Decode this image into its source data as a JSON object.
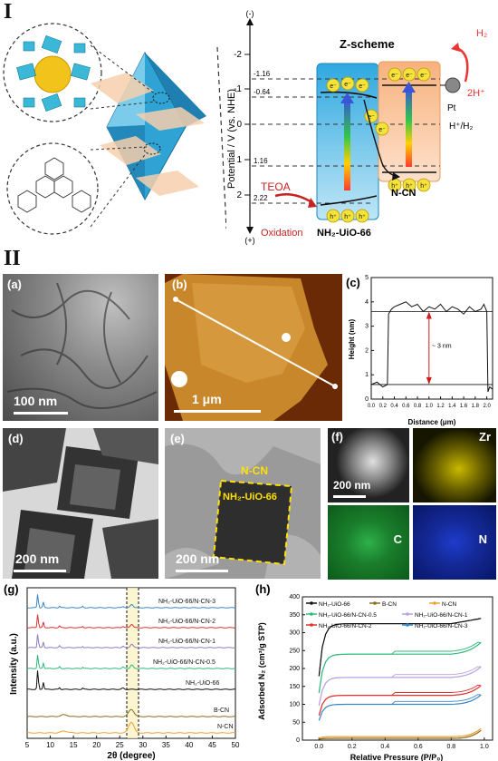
{
  "section_labels": {
    "s1": "I",
    "s2": "II"
  },
  "scheme": {
    "title": "Z-scheme",
    "yaxis_top": "(-)",
    "yaxis_bottom": "(+)",
    "yaxis_label": "Potential / V (vs. NHE)",
    "ticks": [
      "-2",
      "-1",
      "0",
      "1",
      "2"
    ],
    "levels": {
      "cb_uio": "-0.64",
      "cb_cn": "-1.16",
      "vb_cn": "1.16",
      "vb_uio": "2.22"
    },
    "electron": "e⁻",
    "hole": "h⁺",
    "h2": "H₂",
    "h_plus": "2H⁺",
    "pt": "Pt",
    "redox_line": "H⁺/H₂",
    "teoa": "TEOA",
    "oxidation": "Oxidation",
    "uio_label": "NH₂-UiO-66",
    "cn_label": "N-CN"
  },
  "panels": {
    "a": {
      "label": "(a)",
      "scale": "100 nm"
    },
    "b": {
      "label": "(b)",
      "scale": "1 μm"
    },
    "c": {
      "label": "(c)",
      "annotation": "~ 3 nm",
      "xlabel": "Distance (μm)",
      "ylabel": "Height (nm)"
    },
    "d": {
      "label": "(d)",
      "scale": "200 nm"
    },
    "e": {
      "label": "(e)",
      "scale": "200 nm",
      "outer": "N-CN",
      "inner": "NH₂-UiO-66"
    },
    "f": {
      "label": "(f)",
      "scale": "200 nm",
      "zr": "Zr",
      "c": "C",
      "n": "N"
    },
    "g": {
      "label": "(g)",
      "xlabel": "2θ (degree)",
      "ylabel": "Intensity (a.u.)"
    },
    "h": {
      "label": "(h)",
      "xlabel": "Relative Pressure (P/P₀)",
      "ylabel": "Adsorbed N₂ (cm³/g STP)"
    }
  },
  "chart_data": [
    {
      "type": "line",
      "panel": "c",
      "xlabel": "Distance (μm)",
      "ylabel": "Height (nm)",
      "xlim": [
        0.0,
        2.1
      ],
      "ylim": [
        0,
        5
      ],
      "xticks": [
        "0.0",
        "0.2",
        "0.4",
        "0.6",
        "0.8",
        "1.0",
        "1.2",
        "1.4",
        "1.6",
        "1.8",
        "2.0"
      ],
      "yticks": [
        "0",
        "1",
        "2",
        "3",
        "4",
        "5"
      ],
      "series": [
        {
          "values_x": [
            0.0,
            0.1,
            0.2,
            0.28,
            0.3,
            0.35,
            0.4,
            0.5,
            0.6,
            0.7,
            0.8,
            0.9,
            1.0,
            1.1,
            1.2,
            1.3,
            1.4,
            1.5,
            1.6,
            1.7,
            1.8,
            1.9,
            1.95,
            2.0,
            2.02,
            2.05,
            2.1
          ],
          "values_y": [
            0.6,
            0.7,
            0.5,
            0.6,
            3.5,
            3.7,
            3.8,
            3.9,
            4.0,
            3.8,
            3.9,
            3.6,
            3.8,
            3.7,
            3.9,
            3.6,
            3.8,
            3.7,
            3.5,
            3.8,
            3.6,
            3.7,
            3.9,
            3.6,
            0.3,
            0.5,
            0.4
          ]
        }
      ],
      "annotation": "~ 3 nm"
    },
    {
      "type": "line",
      "panel": "g",
      "xlabel": "2θ (degree)",
      "ylabel": "Intensity (a.u.)",
      "xlim": [
        5,
        50
      ],
      "xticks": [
        "5",
        "10",
        "15",
        "20",
        "25",
        "30",
        "35",
        "40",
        "45",
        "50"
      ],
      "series": [
        {
          "name": "NH₂-UiO-66/N-CN-3",
          "color": "#3a87c8"
        },
        {
          "name": "NH₂-UiO-66/N-CN-2",
          "color": "#e03030"
        },
        {
          "name": "NH₂-UiO-66/N-CN-1",
          "color": "#8e7cc3"
        },
        {
          "name": "NH₂-UiO-66/N-CN-0.5",
          "color": "#2fb87a"
        },
        {
          "name": "NH₂-UiO-66",
          "color": "#111111"
        },
        {
          "name": "B-CN",
          "color": "#8a6d1a"
        },
        {
          "name": "N-CN",
          "color": "#f0a030"
        }
      ]
    },
    {
      "type": "line",
      "panel": "h",
      "xlabel": "Relative Pressure (P/P₀)",
      "ylabel": "Adsorbed N₂ (cm³/g STP)",
      "xlim": [
        -0.1,
        1.05
      ],
      "ylim": [
        0,
        400
      ],
      "xticks": [
        "0.0",
        "0.2",
        "0.4",
        "0.6",
        "0.8",
        "1.0"
      ],
      "yticks": [
        "0",
        "50",
        "100",
        "150",
        "200",
        "250",
        "300",
        "350",
        "400"
      ],
      "series": [
        {
          "name": "NH₂-UiO-66",
          "color": "#111111",
          "plateau": 325
        },
        {
          "name": "B-CN",
          "color": "#8a6d1a",
          "plateau": 5
        },
        {
          "name": "N-CN",
          "color": "#f0a030",
          "plateau": 10
        },
        {
          "name": "NH₂-UiO-66/N-CN-0.5",
          "color": "#2fb87a",
          "plateau": 240
        },
        {
          "name": "NH₂-UiO-66/N-CN-1",
          "color": "#b7a0e0",
          "plateau": 175
        },
        {
          "name": "NH₂-UiO-66/N-CN-2",
          "color": "#e03030",
          "plateau": 125
        },
        {
          "name": "NH₂-UiO-66/N-CN-3",
          "color": "#3a87c8",
          "plateau": 100
        }
      ]
    }
  ]
}
